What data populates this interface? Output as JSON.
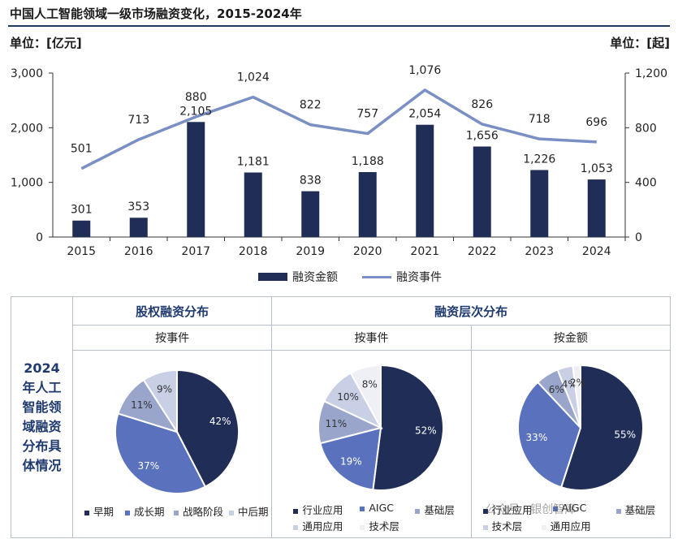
{
  "title": "中国人工智能领域一级市场融资变化，2015-2024年",
  "left_unit": "单位：[亿元]",
  "right_unit": "单位：[起]",
  "chart_data": [
    {
      "type": "bar+line",
      "categories": [
        "2015",
        "2016",
        "2017",
        "2018",
        "2019",
        "2020",
        "2021",
        "2022",
        "2023",
        "2024"
      ],
      "series": [
        {
          "name": "融资金额",
          "type": "bar",
          "axis": "left",
          "color": "#1f2d57",
          "values": [
            301,
            353,
            2105,
            1181,
            838,
            1188,
            2054,
            1656,
            1226,
            1053
          ],
          "labels": [
            "301",
            "353",
            "2,105",
            "1,181",
            "838",
            "1,188",
            "2,054",
            "1,656",
            "1,226",
            "1,053"
          ]
        },
        {
          "name": "融资事件",
          "type": "line",
          "axis": "right",
          "color": "#7a8fc4",
          "values": [
            501,
            713,
            880,
            1024,
            822,
            757,
            1076,
            826,
            718,
            696
          ],
          "labels": [
            "501",
            "713",
            "880",
            "1,024",
            "822",
            "757",
            "1,076",
            "826",
            "718",
            "696"
          ]
        }
      ],
      "left_axis": {
        "min": 0,
        "max": 3000,
        "ticks": [
          "0",
          "1,000",
          "2,000",
          "3,000"
        ],
        "tick_values": [
          0,
          1000,
          2000,
          3000
        ]
      },
      "right_axis": {
        "min": 0,
        "max": 1200,
        "ticks": [
          "0",
          "400",
          "800",
          "1,200"
        ],
        "tick_values": [
          0,
          400,
          800,
          1200
        ]
      },
      "legend": [
        "融资金额",
        "融资事件"
      ]
    },
    {
      "type": "pie",
      "id": "pie1",
      "slices": [
        {
          "name": "早期",
          "value": 42,
          "label": "42%",
          "color": "#1f2d57"
        },
        {
          "name": "成长期",
          "value": 37,
          "label": "37%",
          "color": "#5a72bd"
        },
        {
          "name": "战略阶段",
          "value": 11,
          "label": "11%",
          "color": "#9aa5cc"
        },
        {
          "name": "中后期",
          "value": 9,
          "label": "9%",
          "color": "#c9d0e6"
        }
      ]
    },
    {
      "type": "pie",
      "id": "pie2",
      "slices": [
        {
          "name": "行业应用",
          "value": 52,
          "label": "52%",
          "color": "#1f2d57"
        },
        {
          "name": "AIGC",
          "value": 19,
          "label": "19%",
          "color": "#5a72bd"
        },
        {
          "name": "基础层",
          "value": 11,
          "label": "11%",
          "color": "#9aa5cc"
        },
        {
          "name": "通用应用",
          "value": 10,
          "label": "10%",
          "color": "#c9d0e6"
        },
        {
          "name": "技术层",
          "value": 8,
          "label": "8%",
          "color": "#eef0f6"
        }
      ]
    },
    {
      "type": "pie",
      "id": "pie3",
      "slices": [
        {
          "name": "行业应用",
          "value": 55,
          "label": "55%",
          "color": "#1f2d57"
        },
        {
          "name": "AIGC",
          "value": 33,
          "label": "33%",
          "color": "#5a72bd"
        },
        {
          "name": "基础层",
          "value": 6,
          "label": "6%",
          "color": "#9aa5cc"
        },
        {
          "name": "通用应用",
          "value": 4,
          "label": "4%",
          "color": "#c9d0e6"
        },
        {
          "name": "技术层",
          "value": 2,
          "label": "2%",
          "color": "#eef0f6"
        }
      ]
    }
  ],
  "table": {
    "side_label": "2024\n年人工\n智能领\n域融资\n分布具\n体情况",
    "header_left": "股权融资分布",
    "header_right": "融资层次分布",
    "sub1": "按事件",
    "sub2": "按事件",
    "sub3": "按金额",
    "legend1": [
      "早期",
      "成长期",
      "战略阶段",
      "中后期"
    ],
    "legend2_row1": [
      "行业应用",
      "AIGC",
      "基础层"
    ],
    "legend2_row2": [
      "通用应用",
      "技术层"
    ],
    "legend3_row1": [
      "行业应用",
      "AIGC",
      "基础层"
    ],
    "legend3_row2": [
      "技术层",
      "通用应用"
    ]
  },
  "watermark": "公众号 · 银创智库"
}
